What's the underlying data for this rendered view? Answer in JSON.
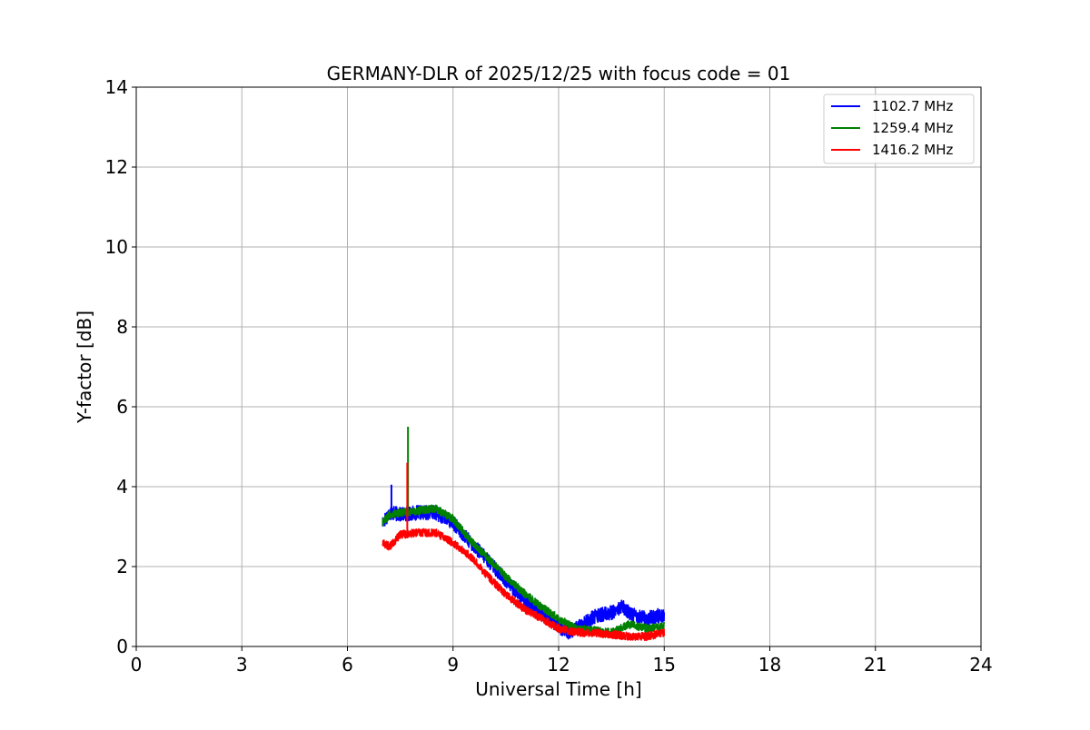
{
  "chart_data": {
    "type": "line",
    "title": "GERMANY-DLR of 2025/12/25 with focus code = 01",
    "xlabel": "Universal Time [h]",
    "ylabel": "Y-factor [dB]",
    "xlim": [
      0,
      24
    ],
    "ylim": [
      0,
      14
    ],
    "xticks": [
      0,
      3,
      6,
      9,
      12,
      15,
      18,
      21,
      24
    ],
    "yticks": [
      0,
      2,
      4,
      6,
      8,
      10,
      12,
      14
    ],
    "xtick_labels": [
      "0",
      "3",
      "6",
      "9",
      "12",
      "15",
      "18",
      "21",
      "24"
    ],
    "ytick_labels": [
      "0",
      "2",
      "4",
      "6",
      "8",
      "10",
      "12",
      "14"
    ],
    "grid": true,
    "legend_position": "top-right",
    "series": [
      {
        "name": "1102.7 MHz",
        "color": "#0000ff",
        "noise": 0.18,
        "x": [
          7.0,
          7.2,
          7.5,
          8.0,
          8.5,
          9.0,
          9.5,
          10.0,
          10.5,
          11.0,
          11.5,
          12.0,
          12.3,
          12.6,
          13.0,
          13.5,
          13.8,
          14.0,
          14.5,
          15.0
        ],
        "y": [
          3.1,
          3.35,
          3.3,
          3.35,
          3.35,
          3.1,
          2.6,
          2.15,
          1.65,
          1.2,
          0.85,
          0.5,
          0.35,
          0.5,
          0.75,
          0.85,
          1.0,
          0.85,
          0.7,
          0.8
        ]
      },
      {
        "name": "1259.4 MHz",
        "color": "#008000",
        "noise": 0.1,
        "x": [
          7.0,
          7.2,
          7.5,
          8.0,
          8.5,
          9.0,
          9.5,
          10.0,
          10.5,
          11.0,
          11.5,
          12.0,
          12.5,
          13.0,
          13.5,
          14.0,
          14.5,
          15.0
        ],
        "y": [
          3.1,
          3.3,
          3.35,
          3.4,
          3.45,
          3.2,
          2.65,
          2.2,
          1.75,
          1.35,
          1.0,
          0.7,
          0.45,
          0.4,
          0.35,
          0.55,
          0.45,
          0.5
        ]
      },
      {
        "name": "1416.2 MHz",
        "color": "#ff0000",
        "noise": 0.1,
        "x": [
          7.0,
          7.2,
          7.5,
          8.0,
          8.5,
          9.0,
          9.5,
          10.0,
          10.5,
          11.0,
          11.5,
          12.0,
          12.5,
          13.0,
          13.5,
          14.0,
          14.5,
          15.0
        ],
        "y": [
          2.6,
          2.5,
          2.8,
          2.85,
          2.85,
          2.6,
          2.25,
          1.75,
          1.3,
          0.95,
          0.7,
          0.45,
          0.35,
          0.35,
          0.3,
          0.25,
          0.25,
          0.35
        ]
      }
    ],
    "spikes": [
      {
        "series": "1102.7 MHz",
        "x": 7.25,
        "y": 4.05
      },
      {
        "series": "1259.4 MHz",
        "x": 7.72,
        "y": 5.5
      },
      {
        "series": "1416.2 MHz",
        "x": 7.7,
        "y": 4.6
      }
    ]
  }
}
